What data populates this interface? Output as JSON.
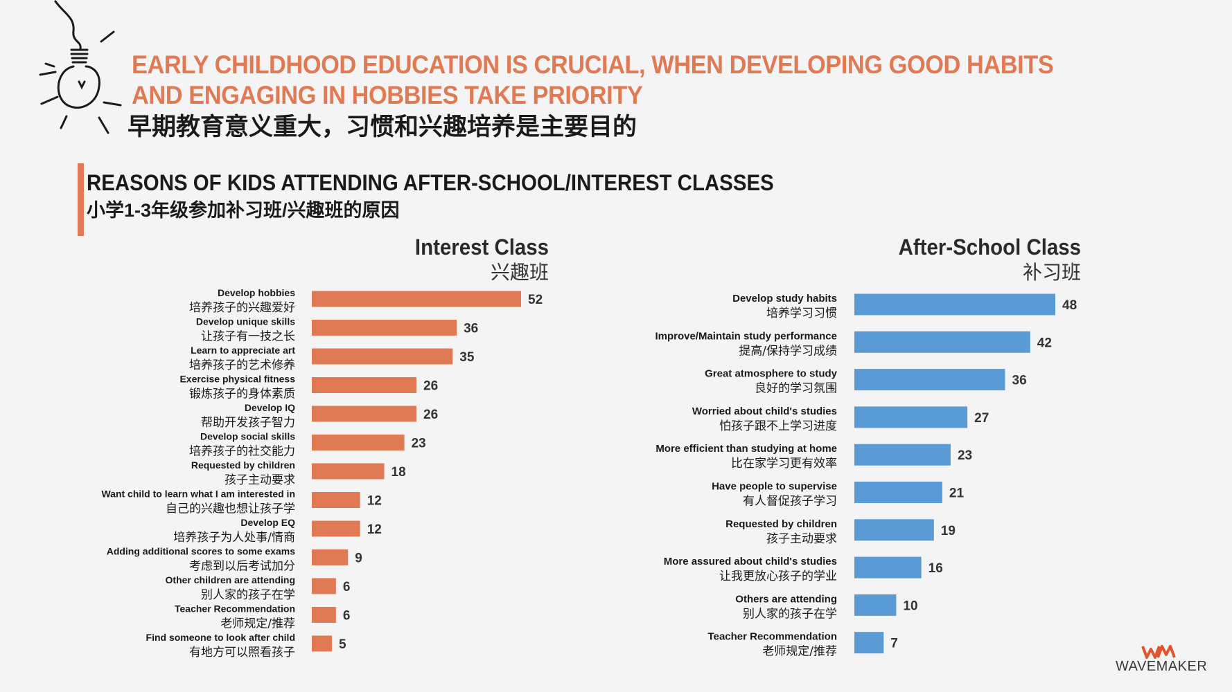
{
  "header": {
    "headline": "EARLY CHILDHOOD EDUCATION IS CRUCIAL, WHEN DEVELOPING GOOD HABITS AND ENGAGING IN HOBBIES TAKE PRIORITY",
    "headline_cn": "早期教育意义重大，习惯和兴趣培养是主要目的"
  },
  "section": {
    "title": "REASONS OF KIDS ATTENDING AFTER-SCHOOL/INTEREST CLASSES",
    "subtitle": "小学1-3年级参加补习班/兴趣班的原因"
  },
  "logo": {
    "text": "WAVEMAKER",
    "mark": "WM"
  },
  "colors": {
    "accent": "#e07a55",
    "interest_bar": "#e07a55",
    "afterschool_bar": "#5b9bd5",
    "text": "#1a1a1a"
  },
  "chart_data": [
    {
      "type": "bar",
      "orientation": "horizontal",
      "title": "Interest Class",
      "subtitle": "兴趣班",
      "categories": [
        "Develop hobbies",
        "Develop unique skills",
        "Learn to appreciate art",
        "Exercise physical fitness",
        "Develop IQ",
        "Develop social skills",
        "Requested by children",
        "Want child to learn what I am interested in",
        "Develop EQ",
        "Adding additional scores to some exams",
        "Other children are attending",
        "Teacher Recommendation",
        "Find someone to look after child"
      ],
      "categories_cn": [
        "培养孩子的兴趣爱好",
        "让孩子有一技之长",
        "培养孩子的艺术修养",
        "锻炼孩子的身体素质",
        "帮助开发孩子智力",
        "培养孩子的社交能力",
        "孩子主动要求",
        "自己的兴趣也想让孩子学",
        "培养孩子为人处事/情商",
        "考虑到以后考试加分",
        "别人家的孩子在学",
        "老师规定/推荐",
        "有地方可以照看孩子"
      ],
      "values": [
        52,
        36,
        35,
        26,
        26,
        23,
        18,
        12,
        12,
        9,
        6,
        6,
        5
      ],
      "xlim": [
        0,
        52
      ]
    },
    {
      "type": "bar",
      "orientation": "horizontal",
      "title": "After-School Class",
      "subtitle": "补习班",
      "categories": [
        "Develop  study habits",
        "Improve/Maintain study performance",
        "Great atmosphere to study",
        "Worried about child's studies",
        "More efficient than studying at home",
        "Have people to supervise",
        "Requested by children",
        "More assured about child's studies",
        "Others are attending",
        "Teacher Recommendation"
      ],
      "categories_cn": [
        "培养学习习惯",
        "提高/保持学习成绩",
        "良好的学习氛围",
        "怕孩子跟不上学习进度",
        "比在家学习更有效率",
        "有人督促孩子学习",
        "孩子主动要求",
        "让我更放心孩子的学业",
        "别人家的孩子在学",
        "老师规定/推荐"
      ],
      "values": [
        48,
        42,
        36,
        27,
        23,
        21,
        19,
        16,
        10,
        7
      ],
      "xlim": [
        0,
        48
      ]
    }
  ]
}
